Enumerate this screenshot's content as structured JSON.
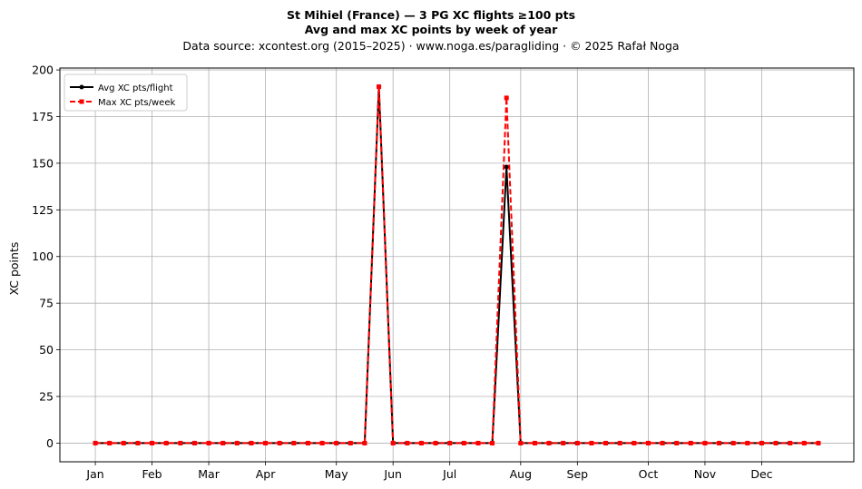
{
  "header": {
    "title": "St Mihiel (France)  —  3 PG XC flights ≥100 pts",
    "subtitle": "Avg and max XC points by week of year",
    "source": "Data source: xcontest.org (2015–2025)  ·  www.noga.es/paragliding  ·  © 2025 Rafał Noga"
  },
  "chart_data": {
    "type": "line",
    "title": "St Mihiel (France)  —  3 PG XC flights ≥100 pts",
    "subtitle": "Avg and max XC points by week of year",
    "xlabel": "",
    "ylabel": "XC points",
    "x": [
      1,
      2,
      3,
      4,
      5,
      6,
      7,
      8,
      9,
      10,
      11,
      12,
      13,
      14,
      15,
      16,
      17,
      18,
      19,
      20,
      21,
      22,
      23,
      24,
      25,
      26,
      27,
      28,
      29,
      30,
      31,
      32,
      33,
      34,
      35,
      36,
      37,
      38,
      39,
      40,
      41,
      42,
      43,
      44,
      45,
      46,
      47,
      48,
      49,
      50,
      51,
      52
    ],
    "xlim": [
      -1.5,
      54.5
    ],
    "ylim": [
      -10,
      201
    ],
    "x_ticks": [
      {
        "label": "Jan",
        "week": 1
      },
      {
        "label": "Feb",
        "week": 5
      },
      {
        "label": "Mar",
        "week": 9
      },
      {
        "label": "Apr",
        "week": 13
      },
      {
        "label": "May",
        "week": 18
      },
      {
        "label": "Jun",
        "week": 22
      },
      {
        "label": "Jul",
        "week": 26
      },
      {
        "label": "Aug",
        "week": 31
      },
      {
        "label": "Sep",
        "week": 35
      },
      {
        "label": "Oct",
        "week": 40
      },
      {
        "label": "Nov",
        "week": 44
      },
      {
        "label": "Dec",
        "week": 48
      }
    ],
    "y_ticks": [
      0,
      25,
      50,
      75,
      100,
      125,
      150,
      175,
      200
    ],
    "grid": true,
    "legend_position": "top-left",
    "series": [
      {
        "name": "Avg XC pts/flight",
        "color": "#000000",
        "style": "solid",
        "marker": "circle",
        "values": [
          0,
          0,
          0,
          0,
          0,
          0,
          0,
          0,
          0,
          0,
          0,
          0,
          0,
          0,
          0,
          0,
          0,
          0,
          0,
          0,
          191,
          0,
          0,
          0,
          0,
          0,
          0,
          0,
          0,
          148,
          0,
          0,
          0,
          0,
          0,
          0,
          0,
          0,
          0,
          0,
          0,
          0,
          0,
          0,
          0,
          0,
          0,
          0,
          0,
          0,
          0,
          0
        ]
      },
      {
        "name": "Max XC pts/week",
        "color": "#ff0000",
        "style": "dashed",
        "marker": "square",
        "values": [
          0,
          0,
          0,
          0,
          0,
          0,
          0,
          0,
          0,
          0,
          0,
          0,
          0,
          0,
          0,
          0,
          0,
          0,
          0,
          0,
          191,
          0,
          0,
          0,
          0,
          0,
          0,
          0,
          0,
          185,
          0,
          0,
          0,
          0,
          0,
          0,
          0,
          0,
          0,
          0,
          0,
          0,
          0,
          0,
          0,
          0,
          0,
          0,
          0,
          0,
          0,
          0
        ]
      }
    ]
  }
}
